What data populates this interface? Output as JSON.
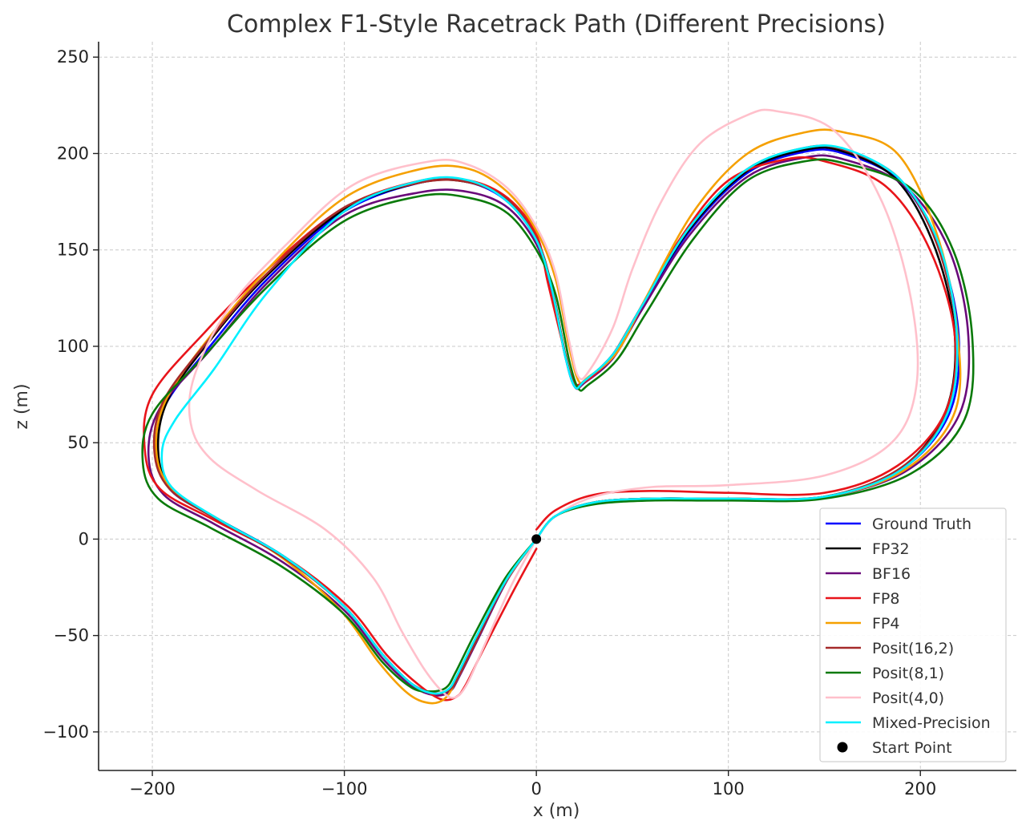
{
  "chart_data": {
    "type": "line",
    "title": "Complex F1-Style Racetrack Path (Different Precisions)",
    "xlabel": "x (m)",
    "ylabel": "z (m)",
    "xlim": [
      -228,
      250
    ],
    "ylim": [
      -120,
      258
    ],
    "xticks": [
      -200,
      -100,
      0,
      100,
      200
    ],
    "yticks": [
      -100,
      -50,
      0,
      50,
      100,
      150,
      200,
      250
    ],
    "xtick_labels": [
      "−200",
      "−100",
      "0",
      "100",
      "200"
    ],
    "ytick_labels": [
      "−100",
      "−50",
      "0",
      "50",
      "100",
      "150",
      "200",
      "250"
    ],
    "grid": true,
    "legend_position": "lower-right",
    "start_point": {
      "label": "Start Point",
      "x": 0,
      "z": 0,
      "color": "#000000"
    },
    "series": [
      {
        "name": "Ground Truth",
        "color": "#0000ff",
        "x": [
          0,
          10,
          30,
          60,
          100,
          150,
          190,
          215,
          220,
          210,
          190,
          160,
          140,
          110,
          80,
          55,
          40,
          25,
          20,
          15,
          8,
          0,
          -15,
          -35,
          -60,
          -100,
          -140,
          -170,
          -193,
          -198,
          -190,
          -165,
          -130,
          -100,
          -80,
          -65,
          -53,
          -45,
          -40,
          -30,
          -15,
          0
        ],
        "z": [
          0,
          12,
          19,
          21,
          21,
          22,
          36,
          65,
          105,
          150,
          185,
          200,
          201,
          190,
          160,
          120,
          95,
          82,
          79,
          95,
          130,
          155,
          175,
          185,
          185,
          170,
          135,
          100,
          70,
          45,
          25,
          10,
          -10,
          -35,
          -60,
          -75,
          -80,
          -78,
          -70,
          -50,
          -20,
          0
        ]
      },
      {
        "name": "FP32",
        "color": "#000000",
        "x": [
          0,
          10,
          30,
          60,
          100,
          150,
          190,
          213,
          218,
          208,
          188,
          160,
          140,
          110,
          80,
          55,
          40,
          25,
          20,
          15,
          8,
          0,
          -15,
          -35,
          -60,
          -100,
          -140,
          -170,
          -192,
          -197,
          -190,
          -165,
          -130,
          -100,
          -80,
          -65,
          -53,
          -45,
          -40,
          -30,
          -15,
          0
        ],
        "z": [
          0,
          12,
          19,
          21,
          21,
          22,
          37,
          66,
          105,
          150,
          186,
          201,
          202,
          191,
          161,
          121,
          96,
          82,
          80,
          96,
          131,
          156,
          176,
          185,
          185,
          171,
          137,
          103,
          72,
          46,
          26,
          10,
          -10,
          -35,
          -60,
          -75,
          -80,
          -78,
          -70,
          -50,
          -20,
          0
        ]
      },
      {
        "name": "BF16",
        "color": "#6a0a7a",
        "x": [
          0,
          10,
          30,
          60,
          100,
          150,
          192,
          220,
          225,
          215,
          192,
          160,
          140,
          110,
          80,
          55,
          40,
          25,
          20,
          15,
          8,
          0,
          -15,
          -35,
          -60,
          -100,
          -140,
          -170,
          -196,
          -202,
          -194,
          -168,
          -132,
          -100,
          -80,
          -65,
          -53,
          -45,
          -40,
          -30,
          -15,
          0
        ],
        "z": [
          0,
          12,
          19,
          21,
          21,
          22,
          35,
          64,
          105,
          150,
          183,
          197,
          198,
          188,
          158,
          119,
          94,
          81,
          79,
          95,
          129,
          153,
          172,
          180,
          180,
          168,
          133,
          98,
          68,
          43,
          23,
          8,
          -12,
          -37,
          -62,
          -76,
          -81,
          -79,
          -71,
          -51,
          -21,
          0
        ]
      },
      {
        "name": "FP8",
        "color": "#e8141a",
        "x": [
          0,
          10,
          30,
          60,
          100,
          150,
          188,
          213,
          218,
          205,
          182,
          150,
          130,
          100,
          75,
          52,
          37,
          22,
          18,
          14,
          6,
          0,
          -15,
          -35,
          -60,
          -100,
          -140,
          -172,
          -200,
          -204,
          -196,
          -168,
          -130,
          -98,
          -78,
          -62,
          -50,
          -42,
          -37,
          -27,
          -12,
          0
        ],
        "z": [
          5,
          15,
          23,
          25,
          24,
          24,
          38,
          66,
          105,
          150,
          183,
          196,
          197,
          186,
          156,
          116,
          92,
          80,
          85,
          100,
          133,
          158,
          177,
          186,
          186,
          172,
          140,
          108,
          75,
          47,
          26,
          10,
          -10,
          -35,
          -60,
          -75,
          -83,
          -82,
          -76,
          -56,
          -27,
          -5
        ]
      },
      {
        "name": "FP4",
        "color": "#f5a000",
        "x": [
          0,
          10,
          30,
          60,
          100,
          150,
          192,
          218,
          219,
          208,
          188,
          160,
          140,
          110,
          82,
          57,
          42,
          27,
          22,
          17,
          10,
          0,
          -15,
          -35,
          -60,
          -100,
          -140,
          -170,
          -193,
          -198,
          -190,
          -165,
          -132,
          -102,
          -82,
          -67,
          -56,
          -48,
          -42,
          -32,
          -16,
          0
        ],
        "z": [
          0,
          12,
          19,
          21,
          21,
          22,
          36,
          66,
          110,
          160,
          200,
          211,
          211,
          200,
          170,
          125,
          97,
          84,
          82,
          100,
          135,
          160,
          180,
          192,
          192,
          177,
          140,
          105,
          72,
          46,
          26,
          10,
          -10,
          -37,
          -64,
          -80,
          -85,
          -83,
          -74,
          -54,
          -22,
          0
        ]
      },
      {
        "name": "Posit(16,2)",
        "color": "#a52a2a",
        "x": [
          0,
          10,
          30,
          60,
          100,
          150,
          190,
          214,
          219,
          209,
          189,
          160,
          140,
          110,
          80,
          55,
          40,
          25,
          20,
          15,
          8,
          0,
          -15,
          -35,
          -60,
          -100,
          -140,
          -170,
          -194,
          -199,
          -191,
          -166,
          -131,
          -100,
          -80,
          -65,
          -53,
          -45,
          -40,
          -30,
          -15,
          0
        ],
        "z": [
          0,
          12,
          19,
          21,
          21,
          22,
          37,
          66,
          105,
          152,
          187,
          202,
          203,
          192,
          162,
          121,
          96,
          82,
          80,
          96,
          131,
          156,
          176,
          185,
          185,
          172,
          138,
          104,
          72,
          46,
          26,
          10,
          -10,
          -35,
          -60,
          -75,
          -80,
          -78,
          -70,
          -50,
          -20,
          0
        ]
      },
      {
        "name": "Posit(8,1)",
        "color": "#0a7a0a",
        "x": [
          0,
          10,
          30,
          60,
          100,
          150,
          195,
          223,
          227,
          217,
          195,
          160,
          140,
          110,
          82,
          57,
          42,
          27,
          22,
          17,
          10,
          0,
          -15,
          -35,
          -60,
          -100,
          -140,
          -172,
          -200,
          -205,
          -197,
          -170,
          -133,
          -100,
          -80,
          -65,
          -55,
          -47,
          -42,
          -32,
          -16,
          0
        ],
        "z": [
          0,
          12,
          18,
          20,
          20,
          21,
          34,
          62,
          105,
          150,
          182,
          195,
          196,
          186,
          156,
          117,
          93,
          80,
          78,
          93,
          127,
          150,
          169,
          177,
          178,
          165,
          131,
          96,
          65,
          40,
          21,
          6,
          -14,
          -39,
          -64,
          -77,
          -79,
          -77,
          -69,
          -49,
          -20,
          0
        ]
      },
      {
        "name": "Posit(4,0)",
        "color": "#ffc0cb",
        "x": [
          0,
          10,
          30,
          60,
          100,
          150,
          185,
          198,
          195,
          180,
          155,
          125,
          110,
          85,
          65,
          50,
          40,
          28,
          22,
          17,
          10,
          0,
          -15,
          -35,
          -55,
          -95,
          -130,
          -160,
          -178,
          -180,
          -170,
          -145,
          -110,
          -85,
          -70,
          -58,
          -48,
          -42,
          -36,
          -27,
          -13,
          0
        ],
        "z": [
          0,
          12,
          22,
          27,
          28,
          33,
          50,
          80,
          125,
          175,
          212,
          222,
          220,
          205,
          175,
          140,
          110,
          88,
          84,
          103,
          138,
          162,
          182,
          194,
          196,
          184,
          153,
          120,
          85,
          60,
          42,
          25,
          5,
          -20,
          -48,
          -68,
          -80,
          -82,
          -75,
          -55,
          -24,
          0
        ]
      },
      {
        "name": "Mixed-Precision",
        "color": "#00f0ff",
        "x": [
          0,
          10,
          30,
          60,
          100,
          150,
          190,
          214,
          219,
          210,
          190,
          162,
          140,
          110,
          80,
          55,
          40,
          25,
          20,
          15,
          8,
          0,
          -15,
          -35,
          -60,
          -100,
          -140,
          -168,
          -188,
          -195,
          -190,
          -165,
          -130,
          -100,
          -80,
          -65,
          -54,
          -46,
          -41,
          -31,
          -15,
          0
        ],
        "z": [
          0,
          12,
          19,
          21,
          21,
          22,
          36,
          65,
          105,
          152,
          186,
          202,
          203,
          192,
          162,
          121,
          96,
          82,
          79,
          95,
          130,
          155,
          175,
          186,
          186,
          170,
          128,
          88,
          62,
          45,
          27,
          10,
          -10,
          -35,
          -60,
          -75,
          -80,
          -78,
          -70,
          -50,
          -20,
          0
        ]
      }
    ]
  }
}
